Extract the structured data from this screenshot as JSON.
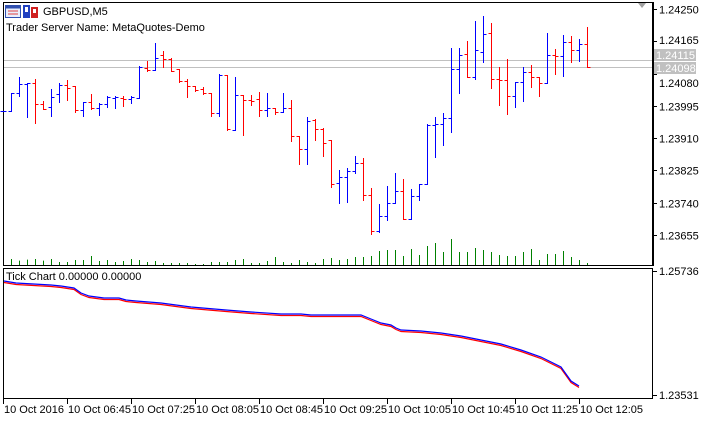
{
  "window": {
    "symbol_title": "GBPUSD,M5",
    "server_label": "Trader Server Name: MetaQuotes-Demo",
    "icons": [
      "chart-window-icon",
      "bar-chart-icon"
    ],
    "shift_marker_icon": "chart-shift-triangle-icon"
  },
  "colors": {
    "bull": "#0000ff",
    "bear": "#ff0000",
    "volume": "#008000",
    "price_line": "#c0c0c0",
    "price_label_bg": "#c0c0c0"
  },
  "price_axis": {
    "labels": [
      "1.24250",
      "1.24165",
      "1.24080",
      "1.23995",
      "1.23910",
      "1.23825",
      "1.23740",
      "1.23655"
    ],
    "ask_label": "1.24115",
    "bid_label": "1.24098"
  },
  "time_axis": {
    "labels": [
      "10 Oct 2016",
      "10 Oct 06:45",
      "10 Oct 07:25",
      "10 Oct 08:05",
      "10 Oct 08:45",
      "10 Oct 09:25",
      "10 Oct 10:05",
      "10 Oct 10:45",
      "10 Oct 11:25",
      "10 Oct 12:05"
    ]
  },
  "indicator": {
    "title": "Tick Chart 0.00000 0.00000",
    "axis_labels": [
      "1.25736",
      "1.23531"
    ]
  },
  "chart_data": [
    {
      "type": "ohlc",
      "title": "GBPUSD,M5",
      "ylim": [
        1.2364,
        1.24265
      ],
      "bid": 1.24098,
      "ask": 1.24115,
      "ohlc": [
        [
          1.23982,
          1.23982,
          1.23982,
          1.23982
        ],
        [
          1.23982,
          1.24029,
          1.23982,
          1.24029
        ],
        [
          1.24029,
          1.24071,
          1.24022,
          1.24053
        ],
        [
          1.24053,
          1.24056,
          1.23966,
          1.24056
        ],
        [
          1.24055,
          1.24066,
          1.23951,
          1.24
        ],
        [
          1.24,
          1.24008,
          1.23986,
          1.23988
        ],
        [
          1.23992,
          1.2404,
          1.23969,
          1.24018
        ],
        [
          1.24026,
          1.24055,
          1.24006,
          1.2405
        ],
        [
          1.24049,
          1.24063,
          1.24011,
          1.24041
        ],
        [
          1.24047,
          1.24047,
          1.2398,
          1.23983
        ],
        [
          1.23983,
          1.24006,
          1.23969,
          1.24006
        ],
        [
          1.24006,
          1.24026,
          1.23987,
          1.23989
        ],
        [
          1.23989,
          1.24003,
          1.23972,
          1.24
        ],
        [
          1.24,
          1.24021,
          1.23993,
          1.24019
        ],
        [
          1.24016,
          1.2402,
          1.2399,
          1.24018
        ],
        [
          1.24016,
          1.2402,
          1.23995,
          1.24013
        ],
        [
          1.24013,
          1.2402,
          1.24003,
          1.24018
        ],
        [
          1.24015,
          1.241,
          1.24015,
          1.24097
        ],
        [
          1.24094,
          1.24113,
          1.24088,
          1.2409
        ],
        [
          1.2409,
          1.24161,
          1.2409,
          1.2412
        ],
        [
          1.24129,
          1.2414,
          1.24098,
          1.24118
        ],
        [
          1.24119,
          1.24121,
          1.24086,
          1.24088
        ],
        [
          1.24091,
          1.24092,
          1.24058,
          1.2406
        ],
        [
          1.24061,
          1.24066,
          1.24018,
          1.24047
        ],
        [
          1.24047,
          1.24048,
          1.24035,
          1.24038
        ],
        [
          1.24039,
          1.24045,
          1.24025,
          1.2403
        ],
        [
          1.2403,
          1.2403,
          1.23969,
          1.23976
        ],
        [
          1.23976,
          1.2408,
          1.23969,
          1.24076
        ],
        [
          1.24076,
          1.24076,
          1.23932,
          1.23935
        ],
        [
          1.23932,
          1.24071,
          1.23932,
          1.24023
        ],
        [
          1.24023,
          1.24023,
          1.23919,
          1.2401
        ],
        [
          1.2401,
          1.24023,
          1.23996,
          1.24008
        ],
        [
          1.24013,
          1.24032,
          1.23967,
          1.23983
        ],
        [
          1.23983,
          1.24029,
          1.23969,
          1.23989
        ],
        [
          1.23989,
          1.23989,
          1.23973,
          1.23978
        ],
        [
          1.23978,
          1.2403,
          1.23978,
          1.23989
        ],
        [
          1.23989,
          1.24011,
          1.23903,
          1.23915
        ],
        [
          1.23915,
          1.23915,
          1.23843,
          1.23882
        ],
        [
          1.23882,
          1.23966,
          1.23843,
          1.23955
        ],
        [
          1.23959,
          1.23961,
          1.23906,
          1.23934
        ],
        [
          1.23934,
          1.23936,
          1.23864,
          1.23896
        ],
        [
          1.23904,
          1.23904,
          1.23781,
          1.23788
        ],
        [
          1.23791,
          1.23826,
          1.2374,
          1.23808
        ],
        [
          1.23808,
          1.23831,
          1.23743,
          1.23824
        ],
        [
          1.23824,
          1.23863,
          1.23817,
          1.23845
        ],
        [
          1.23845,
          1.23858,
          1.23748,
          1.2376
        ],
        [
          1.2376,
          1.2378,
          1.23657,
          1.23665
        ],
        [
          1.23665,
          1.23737,
          1.23663,
          1.23704
        ],
        [
          1.23704,
          1.23785,
          1.23694,
          1.23738
        ],
        [
          1.23738,
          1.23817,
          1.23738,
          1.2377
        ],
        [
          1.2377,
          1.23802,
          1.23696,
          1.23696
        ],
        [
          1.23696,
          1.23776,
          1.23696,
          1.23758
        ],
        [
          1.23758,
          1.23789,
          1.23748,
          1.23788
        ],
        [
          1.23788,
          1.23946,
          1.23788,
          1.23944
        ],
        [
          1.23944,
          1.23965,
          1.23861,
          1.23946
        ],
        [
          1.23946,
          1.23976,
          1.23892,
          1.23962
        ],
        [
          1.23962,
          1.24147,
          1.23927,
          1.24093
        ],
        [
          1.24091,
          1.24147,
          1.24029,
          1.24129
        ],
        [
          1.24131,
          1.24165,
          1.2407,
          1.2407
        ],
        [
          1.24072,
          1.24218,
          1.24066,
          1.24141
        ],
        [
          1.24138,
          1.24231,
          1.2411,
          1.24184
        ],
        [
          1.24186,
          1.24213,
          1.24042,
          1.24067
        ],
        [
          1.24065,
          1.24097,
          1.23997,
          1.24062
        ],
        [
          1.24062,
          1.24118,
          1.23973,
          1.24022
        ],
        [
          1.24022,
          1.24057,
          1.23992,
          1.24057
        ],
        [
          1.24057,
          1.24097,
          1.24008,
          1.24085
        ],
        [
          1.24085,
          1.24102,
          1.24044,
          1.24072
        ],
        [
          1.24072,
          1.24072,
          1.2402,
          1.24054
        ],
        [
          1.24054,
          1.24186,
          1.24054,
          1.24129
        ],
        [
          1.24129,
          1.24144,
          1.24078,
          1.24125
        ],
        [
          1.24125,
          1.24181,
          1.24074,
          1.24162
        ],
        [
          1.24162,
          1.24178,
          1.2411,
          1.24143
        ],
        [
          1.24143,
          1.24171,
          1.24113,
          1.24159
        ],
        [
          1.24159,
          1.24202,
          1.24096,
          1.24096
        ]
      ],
      "volume": [
        0,
        18,
        13,
        16,
        18,
        13,
        18,
        9,
        9,
        15,
        15,
        27,
        12,
        15,
        9,
        12,
        18,
        15,
        9,
        12,
        6,
        6,
        6,
        6,
        3,
        3,
        9,
        9,
        9,
        15,
        18,
        6,
        6,
        12,
        24,
        9,
        6,
        15,
        9,
        6,
        18,
        21,
        15,
        18,
        24,
        24,
        27,
        42,
        45,
        45,
        27,
        48,
        30,
        57,
        66,
        39,
        78,
        39,
        39,
        51,
        45,
        39,
        30,
        27,
        27,
        39,
        48,
        15,
        33,
        33,
        42,
        24,
        15,
        6
      ]
    },
    {
      "type": "line",
      "title": "Tick Chart 0.00000 0.00000",
      "ylim": [
        1.23531,
        1.25736
      ],
      "x": [
        0,
        12,
        47,
        57,
        70,
        77,
        85,
        100,
        115,
        122,
        132,
        157,
        187,
        222,
        247,
        277,
        297,
        307,
        357,
        367,
        377,
        387,
        392,
        397,
        417,
        437,
        457,
        477,
        497,
        517,
        537,
        557,
        567,
        575
      ],
      "series": [
        {
          "name": "Bid",
          "color": "#0000ff",
          "values": [
            1.25575,
            1.25539,
            1.25503,
            1.25485,
            1.25449,
            1.25359,
            1.25306,
            1.2527,
            1.2527,
            1.25234,
            1.25216,
            1.2518,
            1.25108,
            1.25055,
            1.25019,
            1.24983,
            1.24983,
            1.24965,
            1.24965,
            1.24893,
            1.24822,
            1.24786,
            1.24732,
            1.24696,
            1.24678,
            1.24642,
            1.24588,
            1.24517,
            1.24445,
            1.24337,
            1.24212,
            1.24033,
            1.23782,
            1.23692
          ]
        },
        {
          "name": "Ask",
          "color": "#ff0000",
          "values": [
            1.25548,
            1.25512,
            1.25476,
            1.25458,
            1.25422,
            1.25332,
            1.25279,
            1.25243,
            1.25243,
            1.25207,
            1.25189,
            1.25153,
            1.25081,
            1.25028,
            1.24992,
            1.24956,
            1.24956,
            1.24938,
            1.24938,
            1.24866,
            1.24795,
            1.24759,
            1.24705,
            1.24669,
            1.24651,
            1.24615,
            1.24561,
            1.2449,
            1.24418,
            1.2431,
            1.24185,
            1.24006,
            1.23755,
            1.23665
          ]
        }
      ]
    }
  ]
}
